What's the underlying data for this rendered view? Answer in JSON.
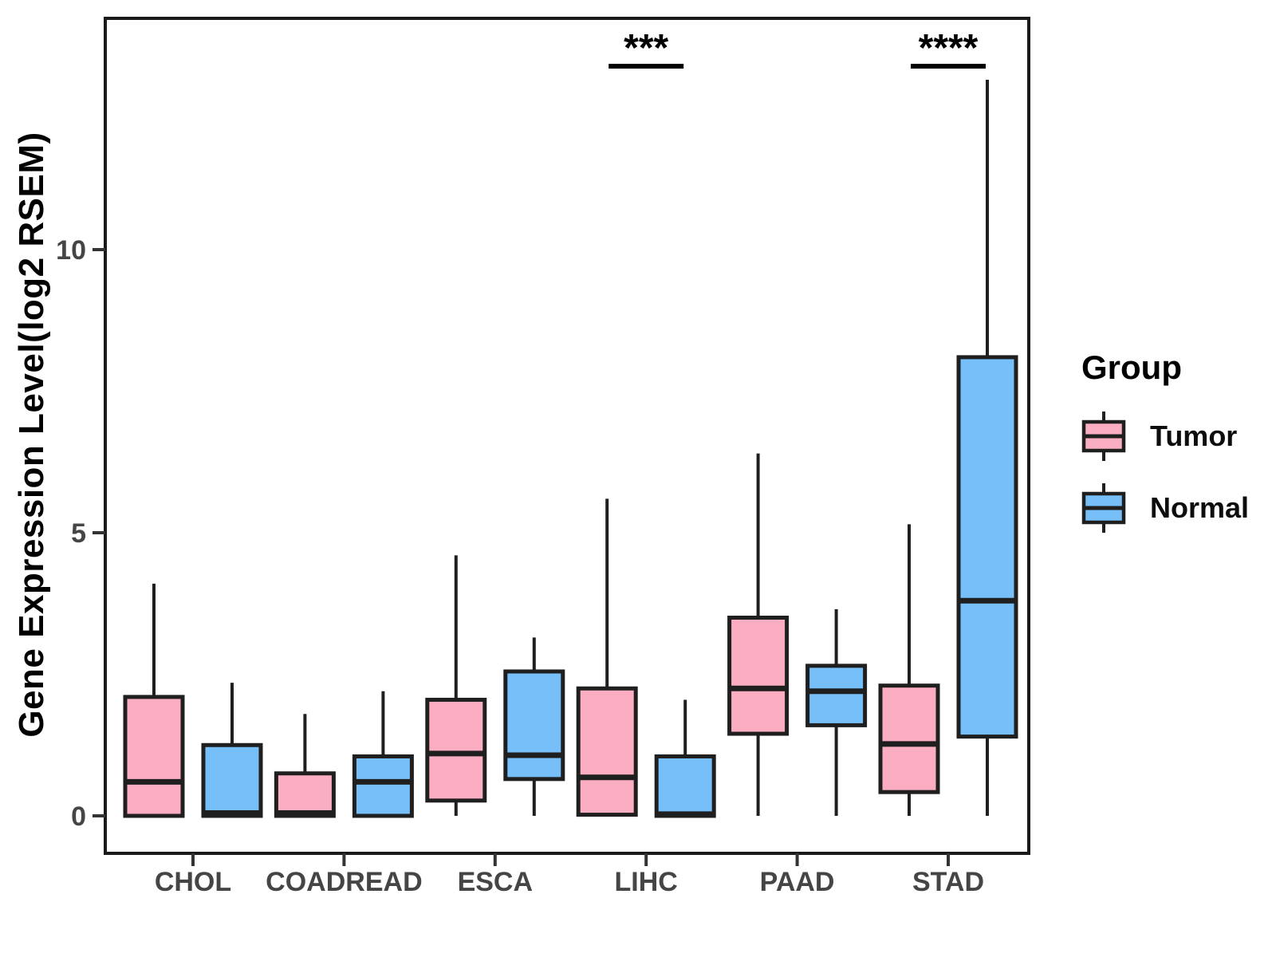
{
  "chart_data": {
    "type": "boxplot",
    "title": "",
    "ylabel": "Gene Expression Level(log2 RSEM)",
    "xlabel": "",
    "categories": [
      "CHOL",
      "COADREAD",
      "ESCA",
      "LIHC",
      "PAAD",
      "STAD"
    ],
    "y_ticks": [
      {
        "value": 0,
        "label": "0"
      },
      {
        "value": 5,
        "label": "5"
      },
      {
        "value": 10,
        "label": "10"
      }
    ],
    "ylim": [
      -0.65,
      14.1
    ],
    "grid": false,
    "legend": {
      "title": "Group",
      "position": "right",
      "items": [
        {
          "label": "Tumor",
          "color": "#FBAEC1"
        },
        {
          "label": "Normal",
          "color": "#76BFF8"
        }
      ]
    },
    "series": [
      {
        "name": "Tumor",
        "color": "#FBAEC1",
        "boxes": [
          {
            "category": "CHOL",
            "min": 0,
            "q1": 0,
            "median": 0.6,
            "q3": 2.1,
            "max": 4.1
          },
          {
            "category": "COADREAD",
            "min": 0,
            "q1": 0,
            "median": 0.05,
            "q3": 0.75,
            "max": 1.8
          },
          {
            "category": "ESCA",
            "min": 0,
            "q1": 0.27,
            "median": 1.1,
            "q3": 2.05,
            "max": 4.6
          },
          {
            "category": "LIHC",
            "min": 0,
            "q1": 0.02,
            "median": 0.68,
            "q3": 2.25,
            "max": 5.6
          },
          {
            "category": "PAAD",
            "min": 0,
            "q1": 1.45,
            "median": 2.25,
            "q3": 3.5,
            "max": 6.4
          },
          {
            "category": "STAD",
            "min": 0,
            "q1": 0.42,
            "median": 1.27,
            "q3": 2.3,
            "max": 5.15
          }
        ]
      },
      {
        "name": "Normal",
        "color": "#76BFF8",
        "boxes": [
          {
            "category": "CHOL",
            "min": 0,
            "q1": 0,
            "median": 0.05,
            "q3": 1.25,
            "max": 2.35
          },
          {
            "category": "COADREAD",
            "min": 0,
            "q1": 0,
            "median": 0.6,
            "q3": 1.05,
            "max": 2.2
          },
          {
            "category": "ESCA",
            "min": 0,
            "q1": 0.65,
            "median": 1.07,
            "q3": 2.55,
            "max": 3.15
          },
          {
            "category": "LIHC",
            "min": 0,
            "q1": 0,
            "median": 0.03,
            "q3": 1.05,
            "max": 2.05
          },
          {
            "category": "PAAD",
            "min": 0,
            "q1": 1.6,
            "median": 2.2,
            "q3": 2.65,
            "max": 3.65
          },
          {
            "category": "STAD",
            "min": 0,
            "q1": 1.4,
            "median": 3.8,
            "q3": 8.1,
            "max": 13.0
          }
        ]
      }
    ],
    "annotations": [
      {
        "category": "LIHC",
        "label": "***"
      },
      {
        "category": "STAD",
        "label": "****"
      }
    ],
    "colors": {
      "box_stroke": "#1F1F1F",
      "panel_border": "#1A1A1A",
      "tick": "#333333",
      "axis_text": "#454545",
      "annotation": "#000000"
    }
  }
}
